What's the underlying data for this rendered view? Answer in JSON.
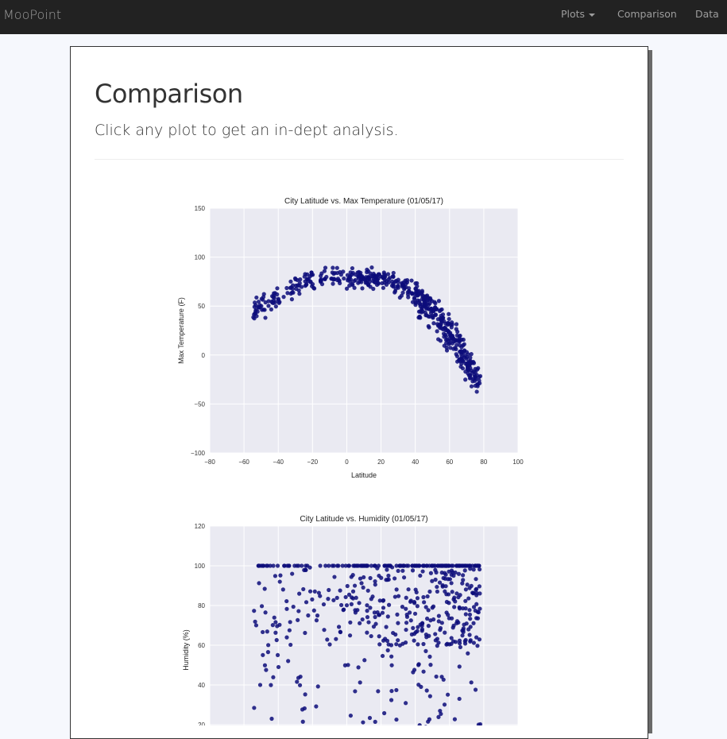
{
  "navbar": {
    "brand": "MooPoint",
    "items": [
      {
        "label": "Plots",
        "dropdown": true
      },
      {
        "label": "Comparison",
        "dropdown": false
      },
      {
        "label": "Data",
        "dropdown": false
      }
    ]
  },
  "page": {
    "title": "Comparison",
    "subtitle": "Click any plot to get an in-dept analysis."
  },
  "colors": {
    "navbar_bg": "#222222",
    "nav_text": "#9d9d9d",
    "plot_bg": "#eaeaf2",
    "marker": "#0d0d7a"
  },
  "chart_data": [
    {
      "type": "scatter",
      "title": "City Latitude vs. Max Temperature (01/05/17)",
      "xlabel": "Latitude",
      "ylabel": "Max Temperature (F)",
      "xlim": [
        -80,
        100
      ],
      "ylim": [
        -100,
        150
      ],
      "xticks": [
        "−80",
        "−60",
        "−40",
        "−20",
        "0",
        "20",
        "40",
        "60",
        "80",
        "100"
      ],
      "yticks": [
        "−100",
        "−50",
        "0",
        "50",
        "100",
        "150"
      ],
      "grid": true,
      "points_note": "approximately 550 cities; temperature peaks near 80F around latitude 0 to -20 and falls to about -60F near latitude 70"
    },
    {
      "type": "scatter",
      "title": "City Latitude vs. Humidity (01/05/17)",
      "xlabel": "Latitude",
      "ylabel": "Humidity (%)",
      "xlim": [
        -80,
        100
      ],
      "ylim": [
        0,
        120
      ],
      "yticks": [
        "20",
        "40",
        "60",
        "80",
        "100",
        "120"
      ],
      "grid": true,
      "points_note": "approximately 550 cities; humidity ranges from about 10% to 100% with a dense band at 100%"
    }
  ]
}
